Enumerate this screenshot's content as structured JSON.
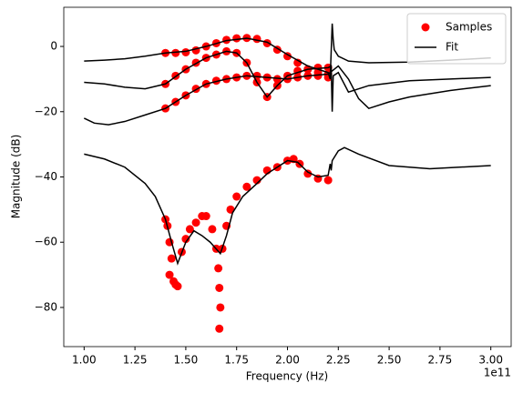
{
  "chart_data": {
    "type": "scatter-line",
    "xlabel": "Frequency (Hz)",
    "ylabel": "Magnitude (dB)",
    "x_offset_label": "1e11",
    "xlim": [
      90000000000.0,
      310000000000.0
    ],
    "ylim": [
      -92,
      12
    ],
    "xticks": [
      {
        "value": 100000000000.0,
        "label": "1.00"
      },
      {
        "value": 125000000000.0,
        "label": "1.25"
      },
      {
        "value": 150000000000.0,
        "label": "1.50"
      },
      {
        "value": 175000000000.0,
        "label": "1.75"
      },
      {
        "value": 200000000000.0,
        "label": "2.00"
      },
      {
        "value": 225000000000.0,
        "label": "2.25"
      },
      {
        "value": 250000000000.0,
        "label": "2.50"
      },
      {
        "value": 275000000000.0,
        "label": "2.75"
      },
      {
        "value": 300000000000.0,
        "label": "3.00"
      }
    ],
    "yticks": [
      0,
      {
        "value": -20,
        "label": "−20"
      },
      {
        "value": -40,
        "label": "−40"
      },
      {
        "value": -60,
        "label": "−60"
      },
      {
        "value": -80,
        "label": "−80"
      }
    ],
    "legend": "upper right",
    "series": [
      {
        "name": "Samples",
        "color": "#ff0000",
        "kind": "scatter",
        "curves": [
          {
            "x": [
              140000000000.0,
              145000000000.0,
              150000000000.0,
              155000000000.0,
              160000000000.0,
              165000000000.0,
              170000000000.0,
              175000000000.0,
              180000000000.0,
              185000000000.0,
              190000000000.0,
              195000000000.0,
              200000000000.0,
              205000000000.0,
              210000000000.0,
              215000000000.0,
              220000000000.0
            ],
            "values": [
              -2,
              -2,
              -1.8,
              -1.2,
              0,
              1,
              2,
              2.5,
              2.6,
              2.3,
              1,
              -1,
              -3,
              -5,
              -7,
              -8,
              -8.5
            ]
          },
          {
            "x": [
              140000000000.0,
              145000000000.0,
              150000000000.0,
              155000000000.0,
              160000000000.0,
              165000000000.0,
              170000000000.0,
              175000000000.0,
              180000000000.0,
              185000000000.0,
              190000000000.0,
              195000000000.0,
              200000000000.0,
              205000000000.0,
              210000000000.0,
              215000000000.0,
              220000000000.0
            ],
            "values": [
              -11.5,
              -9,
              -7,
              -5,
              -3.5,
              -2.5,
              -1.5,
              -2,
              -5,
              -11,
              -15.5,
              -12,
              -9,
              -7.5,
              -7,
              -6.5,
              -6.5
            ]
          },
          {
            "x": [
              140000000000.0,
              145000000000.0,
              150000000000.0,
              155000000000.0,
              160000000000.0,
              165000000000.0,
              170000000000.0,
              175000000000.0,
              180000000000.0,
              185000000000.0,
              190000000000.0,
              195000000000.0,
              200000000000.0,
              205000000000.0,
              210000000000.0,
              215000000000.0,
              220000000000.0
            ],
            "values": [
              -19,
              -17,
              -15,
              -13,
              -11.5,
              -10.5,
              -10,
              -9.5,
              -9,
              -9,
              -9.5,
              -10,
              -10,
              -9.5,
              -9,
              -9,
              -9.5
            ]
          },
          {
            "x": [
              140000000000.0,
              141000000000.0,
              142000000000.0,
              143000000000.0,
              144000000000.0,
              145000000000.0,
              146000000000.0,
              142000000000.0,
              148000000000.0,
              150000000000.0,
              152000000000.0,
              155000000000.0,
              158000000000.0,
              160000000000.0,
              163000000000.0,
              165000000000.0,
              166000000000.0,
              166500000000.0,
              167000000000.0,
              166500000000.0,
              168000000000.0,
              170000000000.0,
              172000000000.0,
              175000000000.0,
              180000000000.0,
              185000000000.0,
              190000000000.0,
              195000000000.0,
              200000000000.0,
              203000000000.0,
              206000000000.0,
              210000000000.0,
              215000000000.0,
              220000000000.0
            ],
            "values": [
              -53,
              -55,
              -60,
              -65,
              -72,
              -73,
              -73.5,
              -70,
              -63,
              -59,
              -56,
              -54,
              -52,
              -52,
              -56,
              -62,
              -68,
              -74,
              -80,
              -86.5,
              -62,
              -55,
              -50,
              -46,
              -43,
              -41,
              -38,
              -37,
              -35,
              -34.5,
              -36,
              -39,
              -40.5,
              -41
            ]
          }
        ]
      },
      {
        "name": "Fit",
        "color": "#000000",
        "kind": "line",
        "curves": [
          {
            "x": [
              100000000000.0,
              110000000000.0,
              120000000000.0,
              130000000000.0,
              140000000000.0,
              150000000000.0,
              160000000000.0,
              170000000000.0,
              180000000000.0,
              190000000000.0,
              200000000000.0,
              210000000000.0,
              215000000000.0,
              220000000000.0,
              221000000000.0,
              222000000000.0,
              222500000000.0,
              223000000000.0,
              225000000000.0,
              230000000000.0,
              240000000000.0,
              260000000000.0,
              280000000000.0,
              300000000000.0
            ],
            "values": [
              -4.5,
              -4.2,
              -3.8,
              -3,
              -2,
              -1.5,
              0,
              1.8,
              2.5,
              1.3,
              -2.5,
              -6,
              -7,
              -8,
              -10,
              7,
              2,
              -1,
              -3,
              -4.5,
              -5,
              -4.8,
              -4.2,
              -3.5
            ]
          },
          {
            "x": [
              100000000000.0,
              110000000000.0,
              120000000000.0,
              130000000000.0,
              140000000000.0,
              150000000000.0,
              160000000000.0,
              170000000000.0,
              175000000000.0,
              180000000000.0,
              185000000000.0,
              190000000000.0,
              195000000000.0,
              200000000000.0,
              210000000000.0,
              220000000000.0,
              221500000000.0,
              222000000000.0,
              222500000000.0,
              225000000000.0,
              230000000000.0,
              240000000000.0,
              260000000000.0,
              280000000000.0,
              300000000000.0
            ],
            "values": [
              -11,
              -11.5,
              -12.5,
              -13,
              -11.5,
              -7,
              -3.5,
              -1.5,
              -2,
              -5,
              -11,
              -15.5,
              -12,
              -9,
              -7,
              -6.5,
              -6,
              -20,
              -9,
              -8,
              -14,
              -12,
              -10.5,
              -10,
              -9.5
            ]
          },
          {
            "x": [
              100000000000.0,
              105000000000.0,
              112000000000.0,
              120000000000.0,
              130000000000.0,
              140000000000.0,
              150000000000.0,
              160000000000.0,
              170000000000.0,
              180000000000.0,
              190000000000.0,
              200000000000.0,
              210000000000.0,
              220000000000.0,
              225000000000.0,
              230000000000.0,
              235000000000.0,
              240000000000.0,
              250000000000.0,
              260000000000.0,
              280000000000.0,
              300000000000.0
            ],
            "values": [
              -22,
              -23.5,
              -24,
              -23,
              -21,
              -19,
              -15,
              -11.5,
              -10,
              -9,
              -9.5,
              -10,
              -9,
              -8.5,
              -6,
              -10,
              -16,
              -19,
              -17,
              -15.5,
              -13.5,
              -12
            ]
          },
          {
            "x": [
              100000000000.0,
              110000000000.0,
              120000000000.0,
              130000000000.0,
              135000000000.0,
              140000000000.0,
              143000000000.0,
              146000000000.0,
              150000000000.0,
              154000000000.0,
              158000000000.0,
              162000000000.0,
              167000000000.0,
              170000000000.0,
              173000000000.0,
              178000000000.0,
              185000000000.0,
              190000000000.0,
              195000000000.0,
              200000000000.0,
              205000000000.0,
              210000000000.0,
              215000000000.0,
              220000000000.0,
              221000000000.0,
              221500000000.0,
              222000000000.0,
              225000000000.0,
              228000000000.0,
              235000000000.0,
              250000000000.0,
              270000000000.0,
              300000000000.0
            ],
            "values": [
              -33,
              -34.5,
              -37,
              -42,
              -46,
              -53,
              -60,
              -66.5,
              -60,
              -56.5,
              -58,
              -60,
              -63.5,
              -58,
              -51,
              -46,
              -42,
              -39,
              -37,
              -35,
              -35.5,
              -38.5,
              -40,
              -39.5,
              -36,
              -38,
              -35,
              -32,
              -31,
              -33,
              -36.5,
              -37.5,
              -36.5
            ]
          }
        ]
      }
    ]
  }
}
